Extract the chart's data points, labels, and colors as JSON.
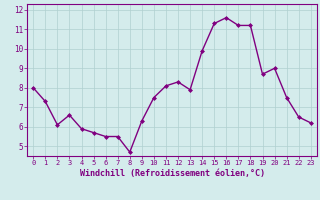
{
  "x": [
    0,
    1,
    2,
    3,
    4,
    5,
    6,
    7,
    8,
    9,
    10,
    11,
    12,
    13,
    14,
    15,
    16,
    17,
    18,
    19,
    20,
    21,
    22,
    23
  ],
  "y": [
    8.0,
    7.3,
    6.1,
    6.6,
    5.9,
    5.7,
    5.5,
    5.5,
    4.7,
    6.3,
    7.5,
    8.1,
    8.3,
    7.9,
    9.9,
    11.3,
    11.6,
    11.2,
    11.2,
    8.7,
    9.0,
    7.5,
    6.5,
    6.2
  ],
  "line_color": "#800080",
  "marker": "D",
  "marker_size": 2.0,
  "bg_color": "#d4ecec",
  "grid_color": "#b0d0d0",
  "xlabel": "Windchill (Refroidissement éolien,°C)",
  "tick_color": "#800080",
  "spine_color": "#800080",
  "ylim": [
    4.5,
    12.3
  ],
  "yticks": [
    5,
    6,
    7,
    8,
    9,
    10,
    11,
    12
  ],
  "xlim": [
    -0.5,
    23.5
  ],
  "xticks": [
    0,
    1,
    2,
    3,
    4,
    5,
    6,
    7,
    8,
    9,
    10,
    11,
    12,
    13,
    14,
    15,
    16,
    17,
    18,
    19,
    20,
    21,
    22,
    23
  ],
  "line_width": 1.0,
  "xtick_fontsize": 5.0,
  "ytick_fontsize": 5.5,
  "xlabel_fontsize": 6.0
}
